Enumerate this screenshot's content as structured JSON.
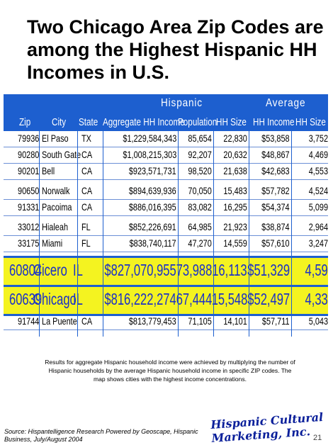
{
  "title": "Two Chicago Area Zip Codes are among the Highest Hispanic HH Incomes in U.S.",
  "table": {
    "group_headers": {
      "hispanic": "Hispanic",
      "average": "Average"
    },
    "columns": [
      "Zip",
      "City",
      "State",
      "Aggregate HH Income",
      "Population",
      "HH Size",
      "HH Income",
      "HH Size"
    ],
    "rows": [
      {
        "zip": "79936",
        "city": "El Paso",
        "state": "TX",
        "agg": "$1,229,584,343",
        "pop": "85,654",
        "hhs": "22,830",
        "inc": "$53,858",
        "size": "3,752",
        "hl": false
      },
      {
        "zip": "90280",
        "city": "South Gate",
        "state": "CA",
        "agg": "$1,008,215,303",
        "pop": "92,207",
        "hhs": "20,632",
        "inc": "$48,867",
        "size": "4,469",
        "hl": false
      },
      {
        "zip": "90201",
        "city": "Bell",
        "state": "CA",
        "agg": "$923,571,731",
        "pop": "98,520",
        "hhs": "21,638",
        "inc": "$42,683",
        "size": "4,553",
        "hl": false
      },
      {
        "zip": "90650",
        "city": "Norwalk",
        "state": "CA",
        "agg": "$894,639,936",
        "pop": "70,050",
        "hhs": "15,483",
        "inc": "$57,782",
        "size": "4,524",
        "hl": false
      },
      {
        "zip": "91331",
        "city": "Pacoima",
        "state": "CA",
        "agg": "$886,016,395",
        "pop": "83,082",
        "hhs": "16,295",
        "inc": "$54,374",
        "size": "5,099",
        "hl": false
      },
      {
        "zip": "33012",
        "city": "Hialeah",
        "state": "FL",
        "agg": "$852,226,691",
        "pop": "64,985",
        "hhs": "21,923",
        "inc": "$38,874",
        "size": "2,964",
        "hl": false
      },
      {
        "zip": "33175",
        "city": "Miami",
        "state": "FL",
        "agg": "$838,740,117",
        "pop": "47,270",
        "hhs": "14,559",
        "inc": "$57,610",
        "size": "3,247",
        "hl": false
      },
      {
        "zip": "60804",
        "city": "Cicero",
        "state": "IL",
        "agg": "$827,070,955",
        "pop": "73,988",
        "hhs": "16,113",
        "inc": "$51,329",
        "size": "4,59",
        "hl": true
      },
      {
        "zip": "60639",
        "city": "Chicago",
        "state": "IL",
        "agg": "$816,222,274",
        "pop": "67,444",
        "hhs": "15,548",
        "inc": "$52,497",
        "size": "4,33",
        "hl": true
      },
      {
        "zip": "91744",
        "city": "La Puente",
        "state": "CA",
        "agg": "$813,779,453",
        "pop": "71,105",
        "hhs": "14,101",
        "inc": "$57,711",
        "size": "5,043",
        "hl": false
      }
    ]
  },
  "caption": "Results for aggregate Hispanic household income were achieved by multiplying the number of Hispanic households by the average Hispanic household income in specific ZIP codes. The map shows cities with the highest income concentrations.",
  "source": "Source:   Hispantelligence Research Powered by Geoscape, Hispanic Business, July/August 2004",
  "logo": "Hispanic Cultural Marketing, Inc.",
  "page_number": "21"
}
